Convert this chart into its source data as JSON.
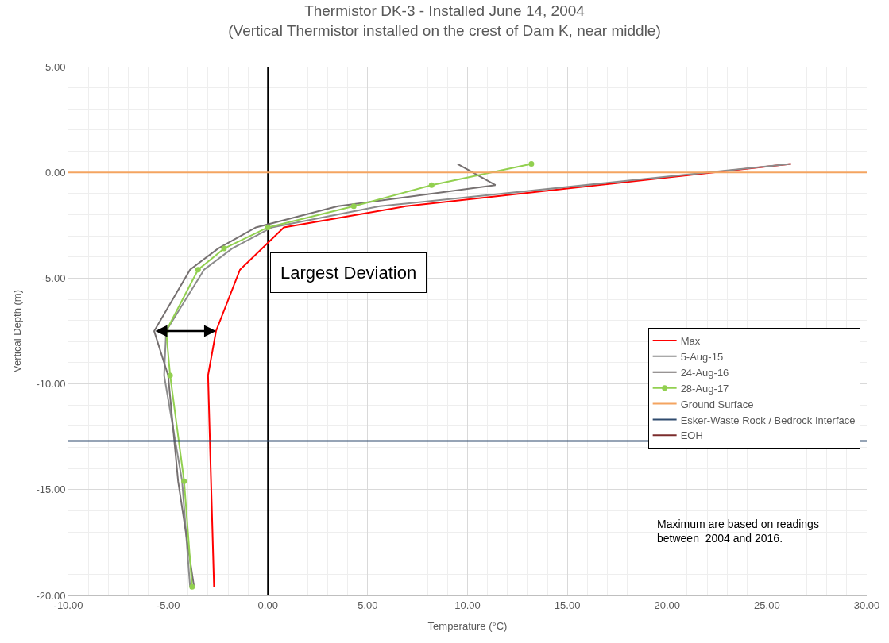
{
  "chart_data": {
    "type": "line",
    "title": "Thermistor DK-3 - Installed June 14, 2004\n(Vertical Thermistor installed on the crest of Dam K, near middle)",
    "xlabel": "Temperature (°C)",
    "ylabel": "Vertical Depth (m)",
    "series": [
      {
        "name": "Max",
        "color": "#ff0000",
        "marker": "none",
        "x": [
          26.2,
          6.9,
          0.8,
          -1.4,
          -2.6,
          -3.0,
          -2.85,
          -2.7
        ],
        "values": [
          0.4,
          -1.6,
          -2.6,
          -4.6,
          -7.5,
          -9.6,
          -14.6,
          -19.6
        ]
      },
      {
        "name": "5-Aug-15",
        "color": "#8c8c8c",
        "marker": "none",
        "x": [
          26.2,
          5.6,
          0.2,
          -1.8,
          -3.2,
          -5.1,
          -5.2,
          -4.3,
          -3.9
        ],
        "values": [
          0.4,
          -1.6,
          -2.6,
          -3.6,
          -4.6,
          -7.5,
          -9.6,
          -14.6,
          -19.6
        ]
      },
      {
        "name": "24-Aug-16",
        "color": "#767171",
        "marker": "none",
        "x": [
          9.5,
          11.4,
          3.5,
          -0.6,
          -2.5,
          -3.9,
          -5.7,
          -5.0,
          -4.5,
          -3.7
        ],
        "values": [
          0.4,
          -0.6,
          -1.6,
          -2.6,
          -3.6,
          -4.6,
          -7.5,
          -9.6,
          -14.6,
          -19.6
        ]
      },
      {
        "name": "28-Aug-17",
        "color": "#92d050",
        "marker": "circle",
        "x": [
          13.2,
          8.2,
          4.3,
          0.0,
          -2.2,
          -3.5,
          -5.1,
          -4.9,
          -4.2,
          -3.8
        ],
        "values": [
          0.4,
          -0.6,
          -1.6,
          -2.6,
          -3.6,
          -4.6,
          -7.5,
          -9.6,
          -14.6,
          -19.6
        ]
      }
    ],
    "ref_lines": [
      {
        "axis": "y",
        "value": 0,
        "label": "Ground Surface",
        "color": "#f4a460"
      },
      {
        "axis": "y",
        "value": -12.7,
        "label": "Esker-Waste Rock / Bedrock Interface",
        "color": "#2f4b6e"
      },
      {
        "axis": "y",
        "value": -20,
        "label": "EOH",
        "color": "#7b2c2c"
      },
      {
        "axis": "x",
        "value": 0,
        "color": "#000000"
      }
    ],
    "annotations": [
      "Largest Deviation",
      "Maximum are based on readings\nbetween  2004 and 2016."
    ],
    "xlim": [
      -10,
      30
    ],
    "xticks": [
      {
        "value": -10,
        "label": "-10.00"
      },
      {
        "value": -5,
        "label": "-5.00"
      },
      {
        "value": 0,
        "label": "0.00"
      },
      {
        "value": 5,
        "label": "5.00"
      },
      {
        "value": 10,
        "label": "10.00"
      },
      {
        "value": 15,
        "label": "15.00"
      },
      {
        "value": 20,
        "label": "20.00"
      },
      {
        "value": 25,
        "label": "25.00"
      },
      {
        "value": 30,
        "label": "30.00"
      }
    ],
    "ylim": [
      -20,
      5
    ],
    "yticks": [
      {
        "value": -20,
        "label": "-20.00"
      },
      {
        "value": -15,
        "label": "-15.00"
      },
      {
        "value": -10,
        "label": "-10.00"
      },
      {
        "value": -5,
        "label": "-5.00"
      },
      {
        "value": 0,
        "label": "0.00"
      },
      {
        "value": 5,
        "label": "5.00"
      }
    ],
    "grid": true,
    "legend": "right",
    "line_style": "solid"
  }
}
